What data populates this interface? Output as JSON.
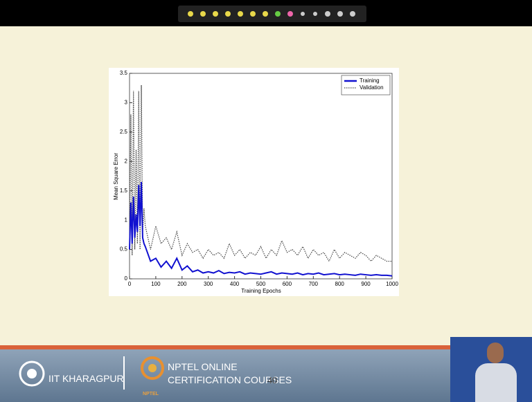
{
  "chart_data": {
    "type": "line",
    "xlabel": "Training Epochs",
    "ylabel": "Mean Square Error",
    "x": [
      0,
      5,
      10,
      15,
      20,
      25,
      30,
      35,
      40,
      45,
      50,
      55,
      60,
      80,
      100,
      120,
      140,
      160,
      180,
      200,
      220,
      240,
      260,
      280,
      300,
      320,
      340,
      360,
      380,
      400,
      420,
      440,
      460,
      480,
      500,
      520,
      540,
      560,
      580,
      600,
      620,
      640,
      660,
      680,
      700,
      720,
      740,
      760,
      780,
      800,
      820,
      840,
      860,
      880,
      900,
      920,
      940,
      960,
      980,
      1000
    ],
    "series": [
      {
        "name": "Training",
        "color": "#1010d0",
        "style": "solid",
        "values": [
          0.5,
          1.3,
          0.6,
          1.4,
          0.7,
          1.1,
          0.8,
          1.6,
          0.9,
          1.65,
          0.7,
          0.6,
          0.55,
          0.3,
          0.35,
          0.2,
          0.3,
          0.18,
          0.35,
          0.15,
          0.22,
          0.12,
          0.15,
          0.1,
          0.12,
          0.1,
          0.14,
          0.09,
          0.11,
          0.1,
          0.12,
          0.08,
          0.1,
          0.09,
          0.08,
          0.1,
          0.12,
          0.08,
          0.1,
          0.09,
          0.08,
          0.1,
          0.07,
          0.09,
          0.08,
          0.1,
          0.07,
          0.08,
          0.09,
          0.07,
          0.08,
          0.07,
          0.06,
          0.08,
          0.07,
          0.06,
          0.07,
          0.06,
          0.06,
          0.05
        ]
      },
      {
        "name": "Validation",
        "color": "#444444",
        "style": "dotted",
        "values": [
          0.5,
          2.8,
          0.4,
          3.2,
          0.5,
          2.2,
          0.6,
          3.2,
          0.5,
          3.3,
          0.8,
          1.2,
          0.9,
          0.5,
          0.9,
          0.6,
          0.7,
          0.5,
          0.8,
          0.4,
          0.6,
          0.45,
          0.5,
          0.35,
          0.5,
          0.4,
          0.45,
          0.35,
          0.6,
          0.4,
          0.5,
          0.35,
          0.45,
          0.4,
          0.55,
          0.35,
          0.5,
          0.4,
          0.65,
          0.45,
          0.5,
          0.4,
          0.55,
          0.35,
          0.5,
          0.4,
          0.45,
          0.3,
          0.5,
          0.35,
          0.45,
          0.4,
          0.35,
          0.45,
          0.4,
          0.3,
          0.4,
          0.35,
          0.3,
          0.3
        ]
      }
    ],
    "xlim": [
      0,
      1000
    ],
    "xticks": [
      0,
      100,
      200,
      300,
      400,
      500,
      600,
      700,
      800,
      900,
      1000
    ],
    "ylim": [
      0,
      3.5
    ],
    "yticks": [
      0,
      0.5,
      1,
      1.5,
      2,
      2.5,
      3,
      3.5
    ],
    "grid": false,
    "legend": "upper right"
  },
  "footer": {
    "institute": "IIT KHARAGPUR",
    "nptel_line1": "NPTEL ONLINE",
    "nptel_line2": "CERTIFICATION COURSES",
    "slide_number": "40",
    "logo_text": "NPTEL"
  }
}
